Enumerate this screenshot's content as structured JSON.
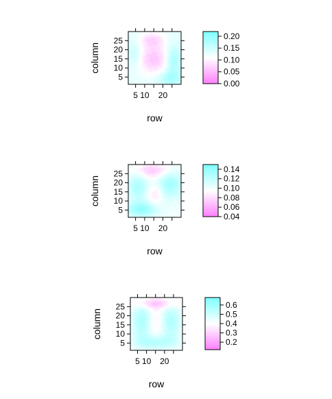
{
  "chart_data": [
    {
      "type": "heatmap",
      "xlabel": "row",
      "ylabel": "column",
      "x_ticks": [
        5,
        10,
        20
      ],
      "y_ticks": [
        5,
        10,
        15,
        20,
        25
      ],
      "xlim": [
        1,
        30
      ],
      "ylim": [
        1,
        30
      ],
      "colorbar": {
        "min": 0.0,
        "max": 0.22,
        "ticks": [
          "0.00",
          "0.05",
          "0.10",
          "0.15",
          "0.20"
        ]
      },
      "colors": {
        "low": "#ff80ff",
        "mid": "#ffffff",
        "high": "#80ffff"
      },
      "pattern": {
        "base": 0.13,
        "blobs": [
          {
            "x": 15,
            "y": 15,
            "sx": 6,
            "sy": 6,
            "a": -0.07
          },
          {
            "x": 14,
            "y": 26,
            "sx": 5,
            "sy": 3,
            "a": -0.05
          },
          {
            "x": 26,
            "y": 14,
            "sx": 3,
            "sy": 6,
            "a": 0.06
          },
          {
            "x": 24,
            "y": 4,
            "sx": 5,
            "sy": 3,
            "a": 0.05
          },
          {
            "x": 4,
            "y": 18,
            "sx": 3,
            "sy": 5,
            "a": 0.03
          }
        ]
      }
    },
    {
      "type": "heatmap",
      "xlabel": "row",
      "ylabel": "column",
      "x_ticks": [
        5,
        10,
        20
      ],
      "y_ticks": [
        5,
        10,
        15,
        20,
        25
      ],
      "xlim": [
        1,
        30
      ],
      "ylim": [
        1,
        30
      ],
      "colorbar": {
        "min": 0.04,
        "max": 0.15,
        "ticks": [
          "0.04",
          "0.06",
          "0.08",
          "0.10",
          "0.12",
          "0.14"
        ]
      },
      "colors": {
        "low": "#ff80ff",
        "mid": "#ffffff",
        "high": "#80ffff"
      },
      "pattern": {
        "base": 0.1,
        "blobs": [
          {
            "x": 8,
            "y": 5,
            "sx": 6,
            "sy": 3,
            "a": 0.04
          },
          {
            "x": 6,
            "y": 18,
            "sx": 4,
            "sy": 6,
            "a": 0.03
          },
          {
            "x": 24,
            "y": 20,
            "sx": 5,
            "sy": 6,
            "a": 0.035
          },
          {
            "x": 15,
            "y": 27,
            "sx": 8,
            "sy": 3,
            "a": -0.03
          },
          {
            "x": 16,
            "y": 14,
            "sx": 3,
            "sy": 4,
            "a": -0.02
          }
        ]
      }
    },
    {
      "type": "heatmap",
      "xlabel": "row",
      "ylabel": "column",
      "x_ticks": [
        5,
        10,
        20
      ],
      "y_ticks": [
        5,
        10,
        15,
        20,
        25
      ],
      "xlim": [
        1,
        30
      ],
      "ylim": [
        1,
        30
      ],
      "colorbar": {
        "min": 0.12,
        "max": 0.68,
        "ticks": [
          "0.2",
          "0.3",
          "0.4",
          "0.5",
          "0.6"
        ]
      },
      "colors": {
        "low": "#ff80ff",
        "mid": "#ffffff",
        "high": "#80ffff"
      },
      "pattern": {
        "base": 0.4,
        "blobs": [
          {
            "x": 7,
            "y": 17,
            "sx": 4,
            "sy": 8,
            "a": 0.18
          },
          {
            "x": 24,
            "y": 17,
            "sx": 4,
            "sy": 8,
            "a": 0.17
          },
          {
            "x": 15,
            "y": 5,
            "sx": 8,
            "sy": 3,
            "a": 0.15
          },
          {
            "x": 15,
            "y": 27,
            "sx": 9,
            "sy": 2,
            "a": -0.14
          },
          {
            "x": 15,
            "y": 17,
            "sx": 3,
            "sy": 6,
            "a": -0.05
          }
        ]
      }
    }
  ]
}
